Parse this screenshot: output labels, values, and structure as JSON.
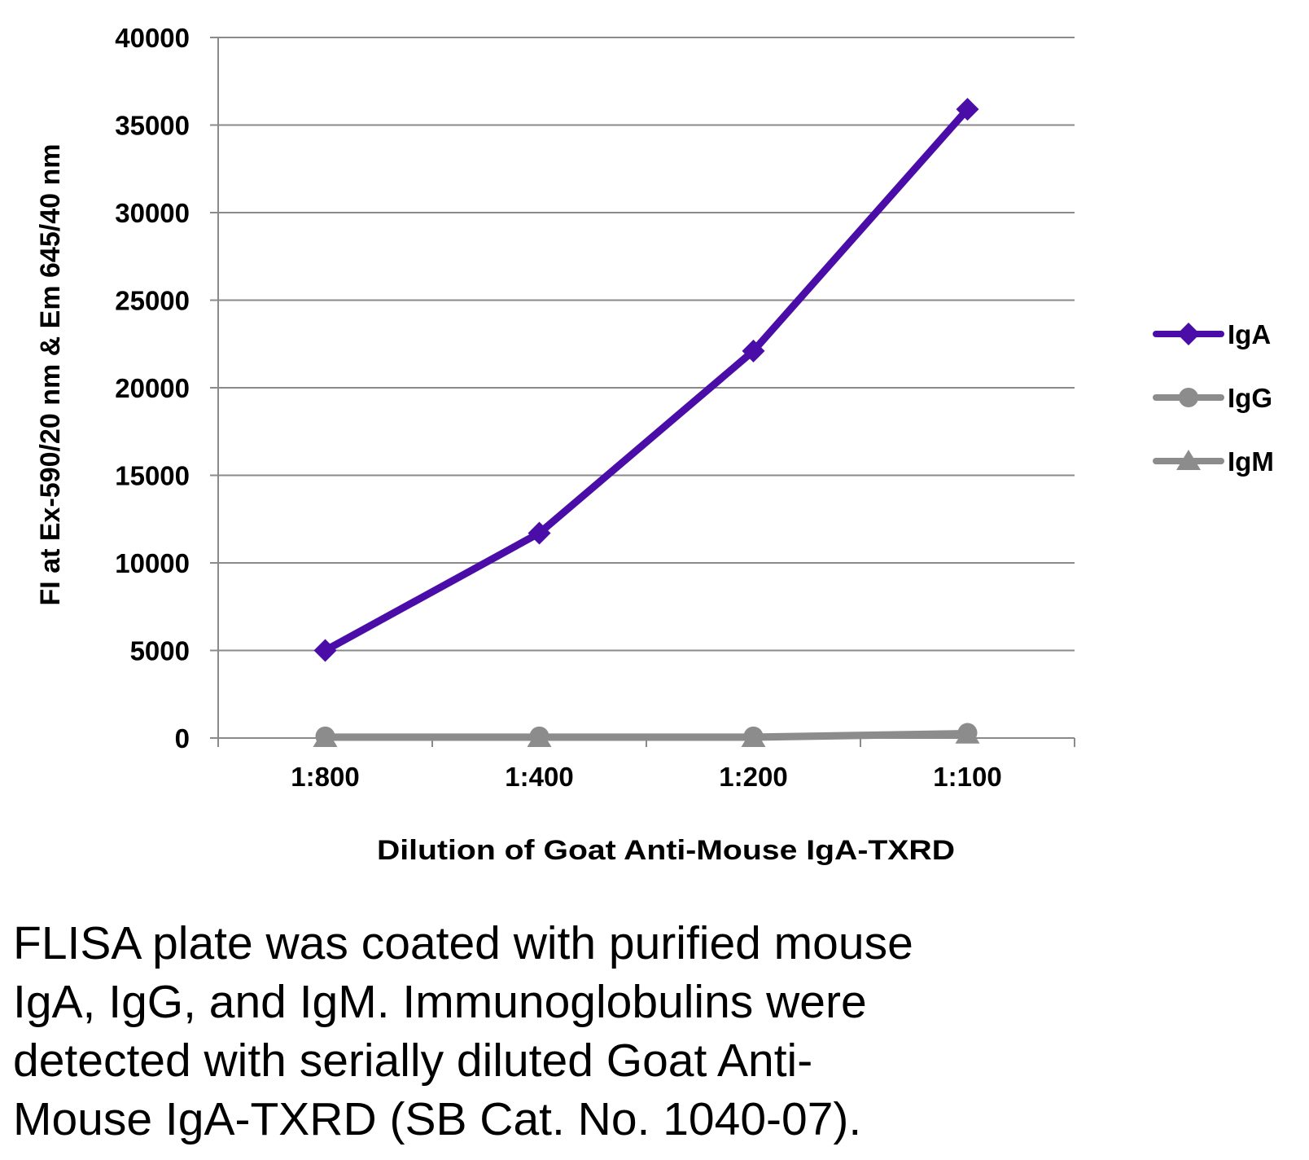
{
  "chart_data": {
    "type": "line",
    "title": "",
    "xlabel": "Dilution of Goat Anti-Mouse IgA-TXRD",
    "ylabel": "FI at Ex-590/20 nm & Em 645/40 nm",
    "categories": [
      "1:800",
      "1:400",
      "1:200",
      "1:100"
    ],
    "ylim": [
      0,
      40000
    ],
    "yticks": [
      "0",
      "5000",
      "10000",
      "15000",
      "20000",
      "25000",
      "30000",
      "35000",
      "40000"
    ],
    "grid": true,
    "legend_position": "right",
    "series": [
      {
        "name": "IgA",
        "values": [
          5000,
          11700,
          22100,
          35900
        ],
        "color": "#4B0DA8",
        "marker": "diamond"
      },
      {
        "name": "IgG",
        "values": [
          100,
          100,
          100,
          300
        ],
        "color": "#8C8C8C",
        "marker": "circle"
      },
      {
        "name": "IgM",
        "values": [
          0,
          0,
          0,
          200
        ],
        "color": "#8C8C8C",
        "marker": "triangle"
      }
    ]
  },
  "caption_lines": [
    "FLISA plate was coated with purified mouse",
    "IgA, IgG, and IgM.  Immunoglobulins were",
    "detected with serially diluted Goat Anti-",
    "Mouse IgA-TXRD (SB Cat. No. 1040-07)."
  ]
}
